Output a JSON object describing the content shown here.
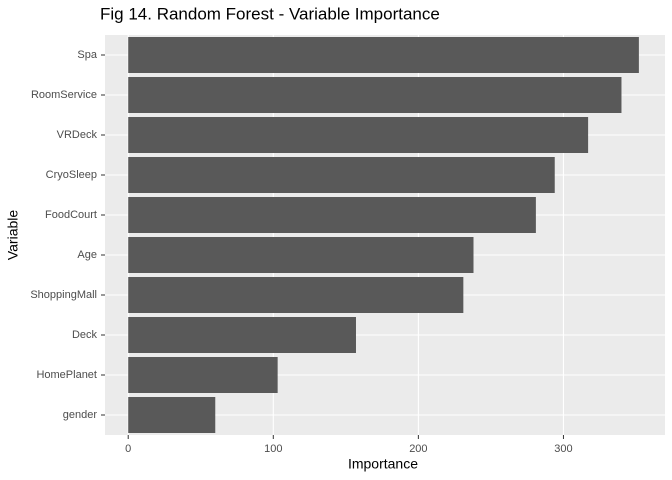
{
  "chart_data": {
    "type": "bar",
    "orientation": "horizontal",
    "title": "Fig 14. Random Forest - Variable Importance",
    "x_label": "Importance",
    "y_label": "Variable",
    "categories": [
      "Spa",
      "RoomService",
      "VRDeck",
      "CryoSleep",
      "FoodCourt",
      "Age",
      "ShoppingMall",
      "Deck",
      "HomePlanet",
      "gender"
    ],
    "values": [
      352,
      340,
      317,
      294,
      281,
      238,
      231,
      157,
      103,
      60
    ],
    "color": "#595959",
    "xlim": [
      -16,
      370
    ],
    "xticks": [
      0,
      100,
      200,
      300
    ],
    "grid": true
  }
}
